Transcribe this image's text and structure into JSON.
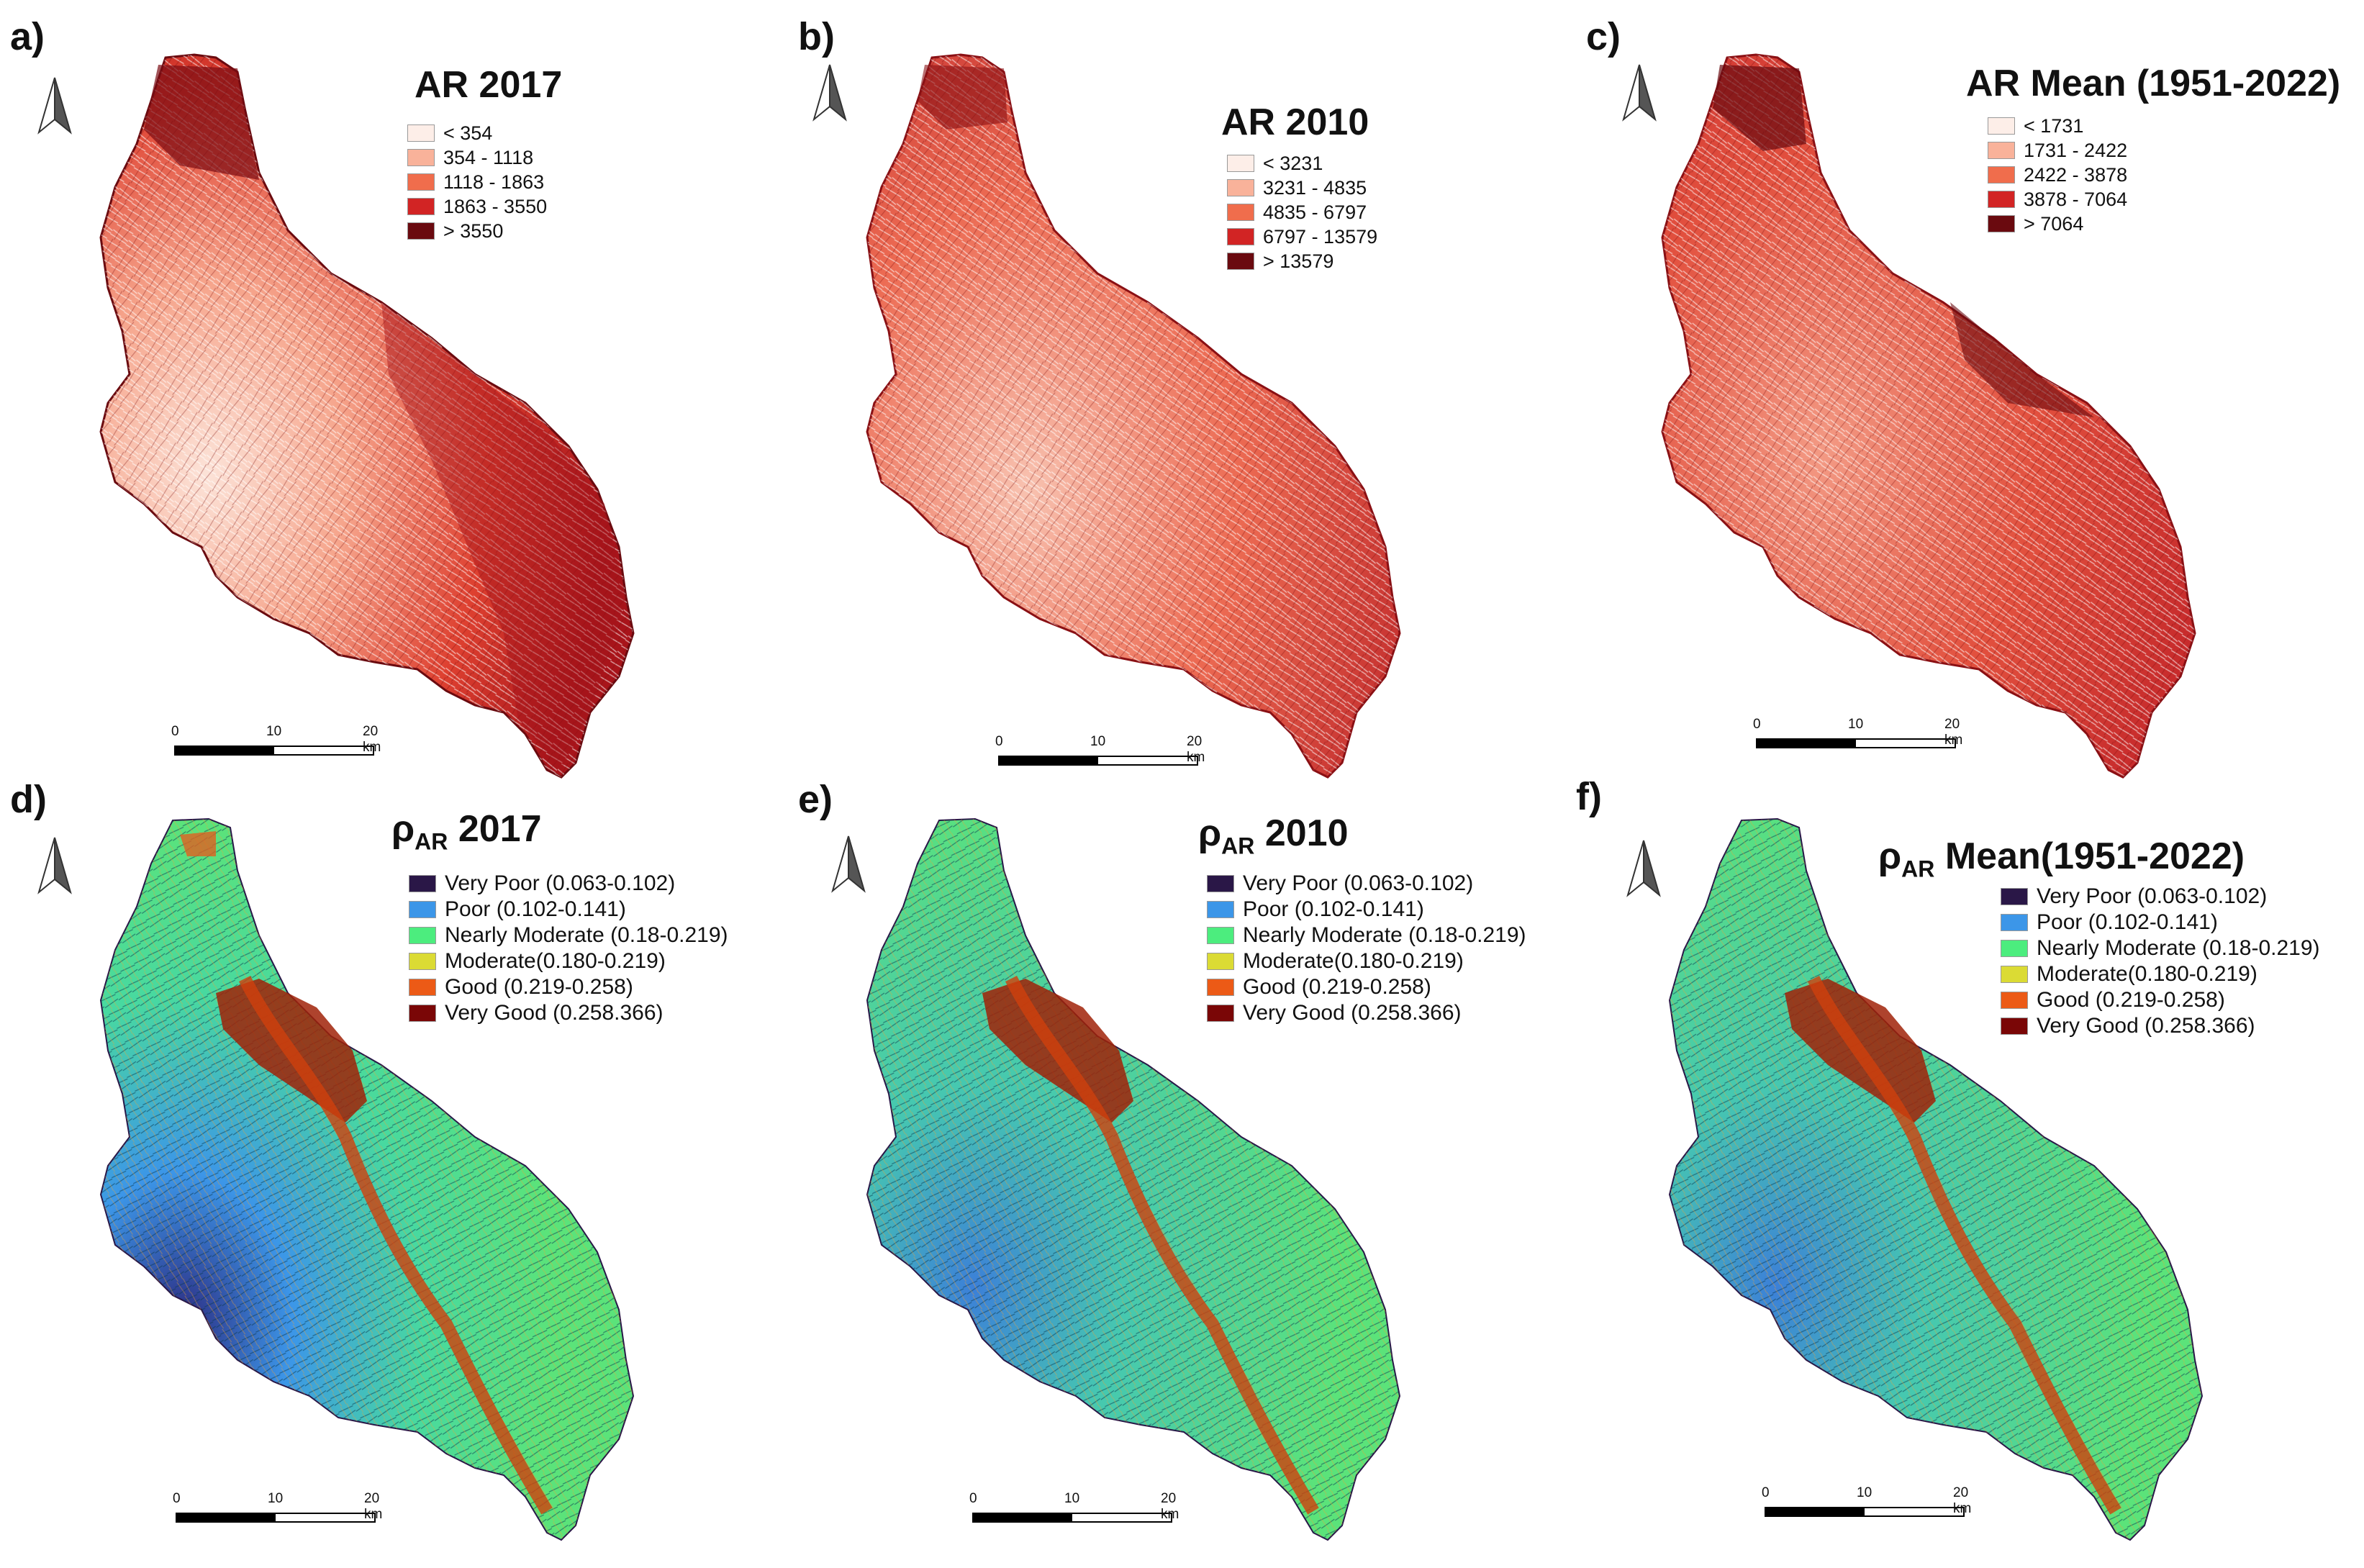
{
  "panels": [
    {
      "label": "a)",
      "title": "AR 2017",
      "title_sub": "",
      "legend": [
        {
          "label": "< 354",
          "color": "#fdeee8"
        },
        {
          "label": "354 - 1118",
          "color": "#f9b29a"
        },
        {
          "label": "1118 - 1863",
          "color": "#f06d4c"
        },
        {
          "label": "1863 - 3550",
          "color": "#d22424"
        },
        {
          "label": "> 3550",
          "color": "#6a0a0f"
        }
      ],
      "scale": {
        "t0": "0",
        "t1": "10",
        "t2": "20 km"
      }
    },
    {
      "label": "b)",
      "title": "AR 2010",
      "title_sub": "",
      "legend": [
        {
          "label": "< 3231",
          "color": "#fdeee8"
        },
        {
          "label": "3231 - 4835",
          "color": "#f9b29a"
        },
        {
          "label": "4835 - 6797",
          "color": "#f06d4c"
        },
        {
          "label": "6797 - 13579",
          "color": "#d22424"
        },
        {
          "label": "> 13579",
          "color": "#6a0a0f"
        }
      ],
      "scale": {
        "t0": "0",
        "t1": "10",
        "t2": "20 km"
      }
    },
    {
      "label": "c)",
      "title": "AR Mean (1951-2022)",
      "title_sub": "",
      "legend": [
        {
          "label": "< 1731",
          "color": "#fdeee8"
        },
        {
          "label": "1731 - 2422",
          "color": "#f9b29a"
        },
        {
          "label": "2422 - 3878",
          "color": "#f06d4c"
        },
        {
          "label": "3878 - 7064",
          "color": "#d22424"
        },
        {
          "label": "> 7064",
          "color": "#6a0a0f"
        }
      ],
      "scale": {
        "t0": "0",
        "t1": "10",
        "t2": "20 km"
      }
    },
    {
      "label": "d)",
      "title_pre": "ρ",
      "title_sub": "AR",
      "title": " 2017",
      "legend": [
        {
          "label": "Very Poor (0.063-0.102)",
          "color": "#2a1747"
        },
        {
          "label": "Poor (0.102-0.141)",
          "color": "#3c96e8"
        },
        {
          "label": "Nearly Moderate (0.18-0.219)",
          "color": "#4ced7e"
        },
        {
          "label": "Moderate(0.180-0.219)",
          "color": "#dbdb34"
        },
        {
          "label": "Good (0.219-0.258)",
          "color": "#ec5a16"
        },
        {
          "label": "Very Good (0.258.366)",
          "color": "#7a0606"
        }
      ],
      "scale": {
        "t0": "0",
        "t1": "10",
        "t2": "20 km"
      }
    },
    {
      "label": "e)",
      "title_pre": "ρ",
      "title_sub": "AR",
      "title": " 2010",
      "legend": [
        {
          "label": "Very Poor (0.063-0.102)",
          "color": "#2a1747"
        },
        {
          "label": "Poor (0.102-0.141)",
          "color": "#3c96e8"
        },
        {
          "label": "Nearly Moderate (0.18-0.219)",
          "color": "#4ced7e"
        },
        {
          "label": "Moderate(0.180-0.219)",
          "color": "#dbdb34"
        },
        {
          "label": "Good (0.219-0.258)",
          "color": "#ec5a16"
        },
        {
          "label": "Very Good (0.258.366)",
          "color": "#7a0606"
        }
      ],
      "scale": {
        "t0": "0",
        "t1": "10",
        "t2": "20 km"
      }
    },
    {
      "label": "f)",
      "title_pre": "ρ",
      "title_sub": "AR",
      "title": " Mean(1951-2022)",
      "legend": [
        {
          "label": "Very Poor (0.063-0.102)",
          "color": "#2a1747"
        },
        {
          "label": "Poor (0.102-0.141)",
          "color": "#3c96e8"
        },
        {
          "label": "Nearly Moderate (0.18-0.219)",
          "color": "#4ced7e"
        },
        {
          "label": "Moderate(0.180-0.219)",
          "color": "#dbdb34"
        },
        {
          "label": "Good (0.219-0.258)",
          "color": "#ec5a16"
        },
        {
          "label": "Very Good (0.258.366)",
          "color": "#7a0606"
        }
      ],
      "scale": {
        "t0": "0",
        "t1": "10",
        "t2": "20 km"
      }
    }
  ]
}
